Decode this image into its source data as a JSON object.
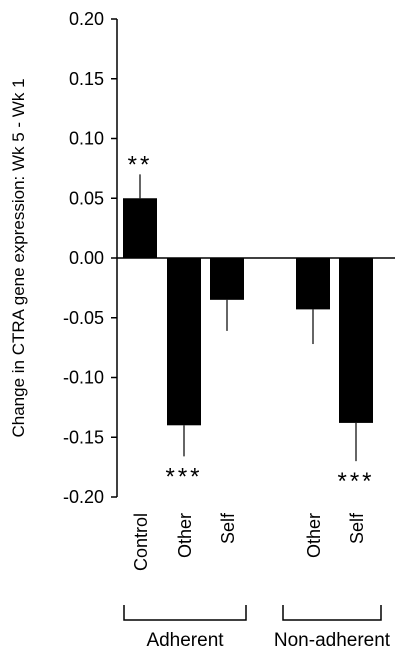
{
  "chart_data": {
    "type": "bar",
    "ylabel": "Change in CTRA gene expression: Wk 5 - Wk 1",
    "ylim": [
      -0.2,
      0.2
    ],
    "yticks": [
      "0.20",
      "0.15",
      "0.10",
      "0.05",
      "0.00",
      "-0.05",
      "-0.10",
      "-0.15",
      "-0.20"
    ],
    "bar_color": "#000000",
    "bars": [
      {
        "category": "Control",
        "group": "Adherent",
        "value": 0.05,
        "error": 0.02,
        "significance": "**"
      },
      {
        "category": "Other",
        "group": "Adherent",
        "value": -0.14,
        "error": 0.026,
        "significance": "***"
      },
      {
        "category": "Self",
        "group": "Adherent",
        "value": -0.035,
        "error": 0.026,
        "significance": ""
      },
      {
        "category": "Other",
        "group": "Non-adherent",
        "value": -0.043,
        "error": 0.029,
        "significance": ""
      },
      {
        "category": "Self",
        "group": "Non-adherent",
        "value": -0.138,
        "error": 0.032,
        "significance": "***"
      }
    ],
    "groups": [
      "Adherent",
      "Non-adherent"
    ]
  }
}
